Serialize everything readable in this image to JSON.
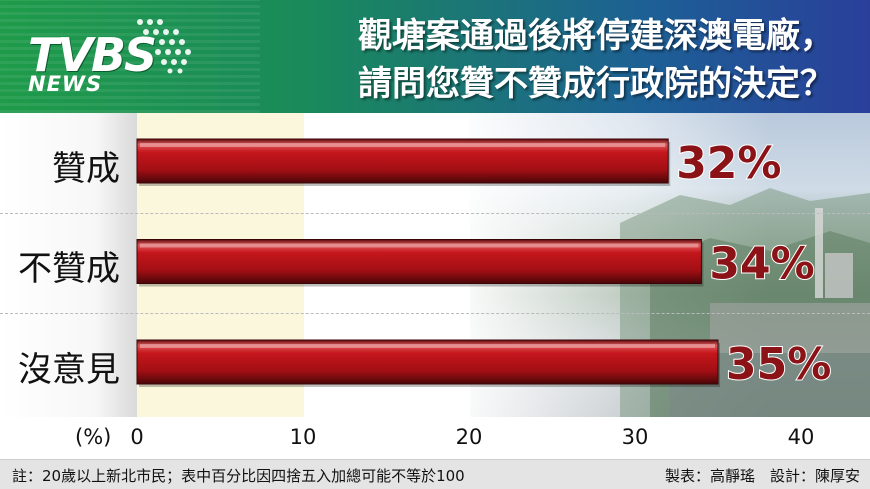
{
  "header": {
    "logo_main": "TVBS",
    "logo_sub": "NEWS",
    "title_line1": "觀塘案通過後將停建深澳電廠，",
    "title_line2": "請問您贊不贊成行政院的決定？"
  },
  "chart_data": {
    "type": "bar",
    "orientation": "horizontal",
    "categories": [
      "贊成",
      "不贊成",
      "沒意見"
    ],
    "values": [
      32,
      34,
      35
    ],
    "data_labels": [
      "32%",
      "34%",
      "35%"
    ],
    "xlim": [
      0,
      44
    ],
    "xticks": [
      0,
      10,
      20,
      30,
      40
    ],
    "xtick_labels": [
      "0",
      "10",
      "20",
      "30",
      "40"
    ],
    "unit_label": "(%)",
    "bar_color": "#c4161c",
    "label_color": "#8b1216",
    "grid": false
  },
  "footer": {
    "note": "註：20歲以上新北市民；表中百分比因四捨五入加總可能不等於100",
    "credit": "製表：高靜瑤　設計：陳厚安"
  }
}
